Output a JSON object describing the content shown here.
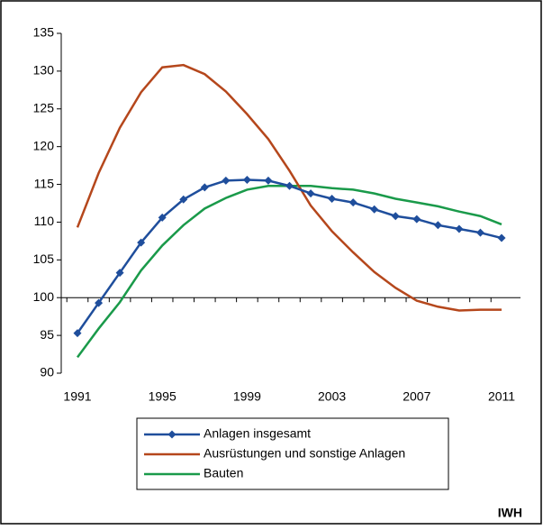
{
  "chart_data": {
    "type": "line",
    "categories": [
      "1991",
      null,
      null,
      null,
      "1995",
      null,
      null,
      null,
      "1999",
      null,
      null,
      null,
      "2003",
      null,
      null,
      null,
      "2007",
      null,
      null,
      null,
      "2011"
    ],
    "series": [
      {
        "name": "Anlagen insgesamt",
        "color": "#1f4e9c",
        "marker": "diamond",
        "values": [
          95.3,
          99.3,
          103.3,
          107.3,
          110.6,
          113.0,
          114.6,
          115.5,
          115.6,
          115.5,
          114.8,
          113.8,
          113.1,
          112.6,
          111.7,
          110.8,
          110.4,
          109.6,
          109.1,
          108.6,
          107.9
        ]
      },
      {
        "name": "Ausrüstungen und sonstige Anlagen",
        "color": "#b5471c",
        "values": [
          109.3,
          116.5,
          122.5,
          127.2,
          130.5,
          130.8,
          129.6,
          127.3,
          124.3,
          121.0,
          116.8,
          112.2,
          108.8,
          106.0,
          103.4,
          101.3,
          99.6,
          98.8,
          98.3,
          98.4,
          98.4
        ]
      },
      {
        "name": "Bauten",
        "color": "#1a9a4a",
        "values": [
          92.1,
          95.9,
          99.4,
          103.6,
          106.9,
          109.6,
          111.8,
          113.2,
          114.3,
          114.8,
          114.8,
          114.8,
          114.5,
          114.3,
          113.8,
          113.1,
          112.6,
          112.1,
          111.4,
          110.8,
          109.7
        ]
      }
    ],
    "ylim": [
      90,
      135
    ],
    "yticks": [
      90,
      95,
      100,
      105,
      110,
      115,
      120,
      125,
      130,
      135
    ],
    "x_axis_crosses": 100,
    "source": "IWH"
  }
}
